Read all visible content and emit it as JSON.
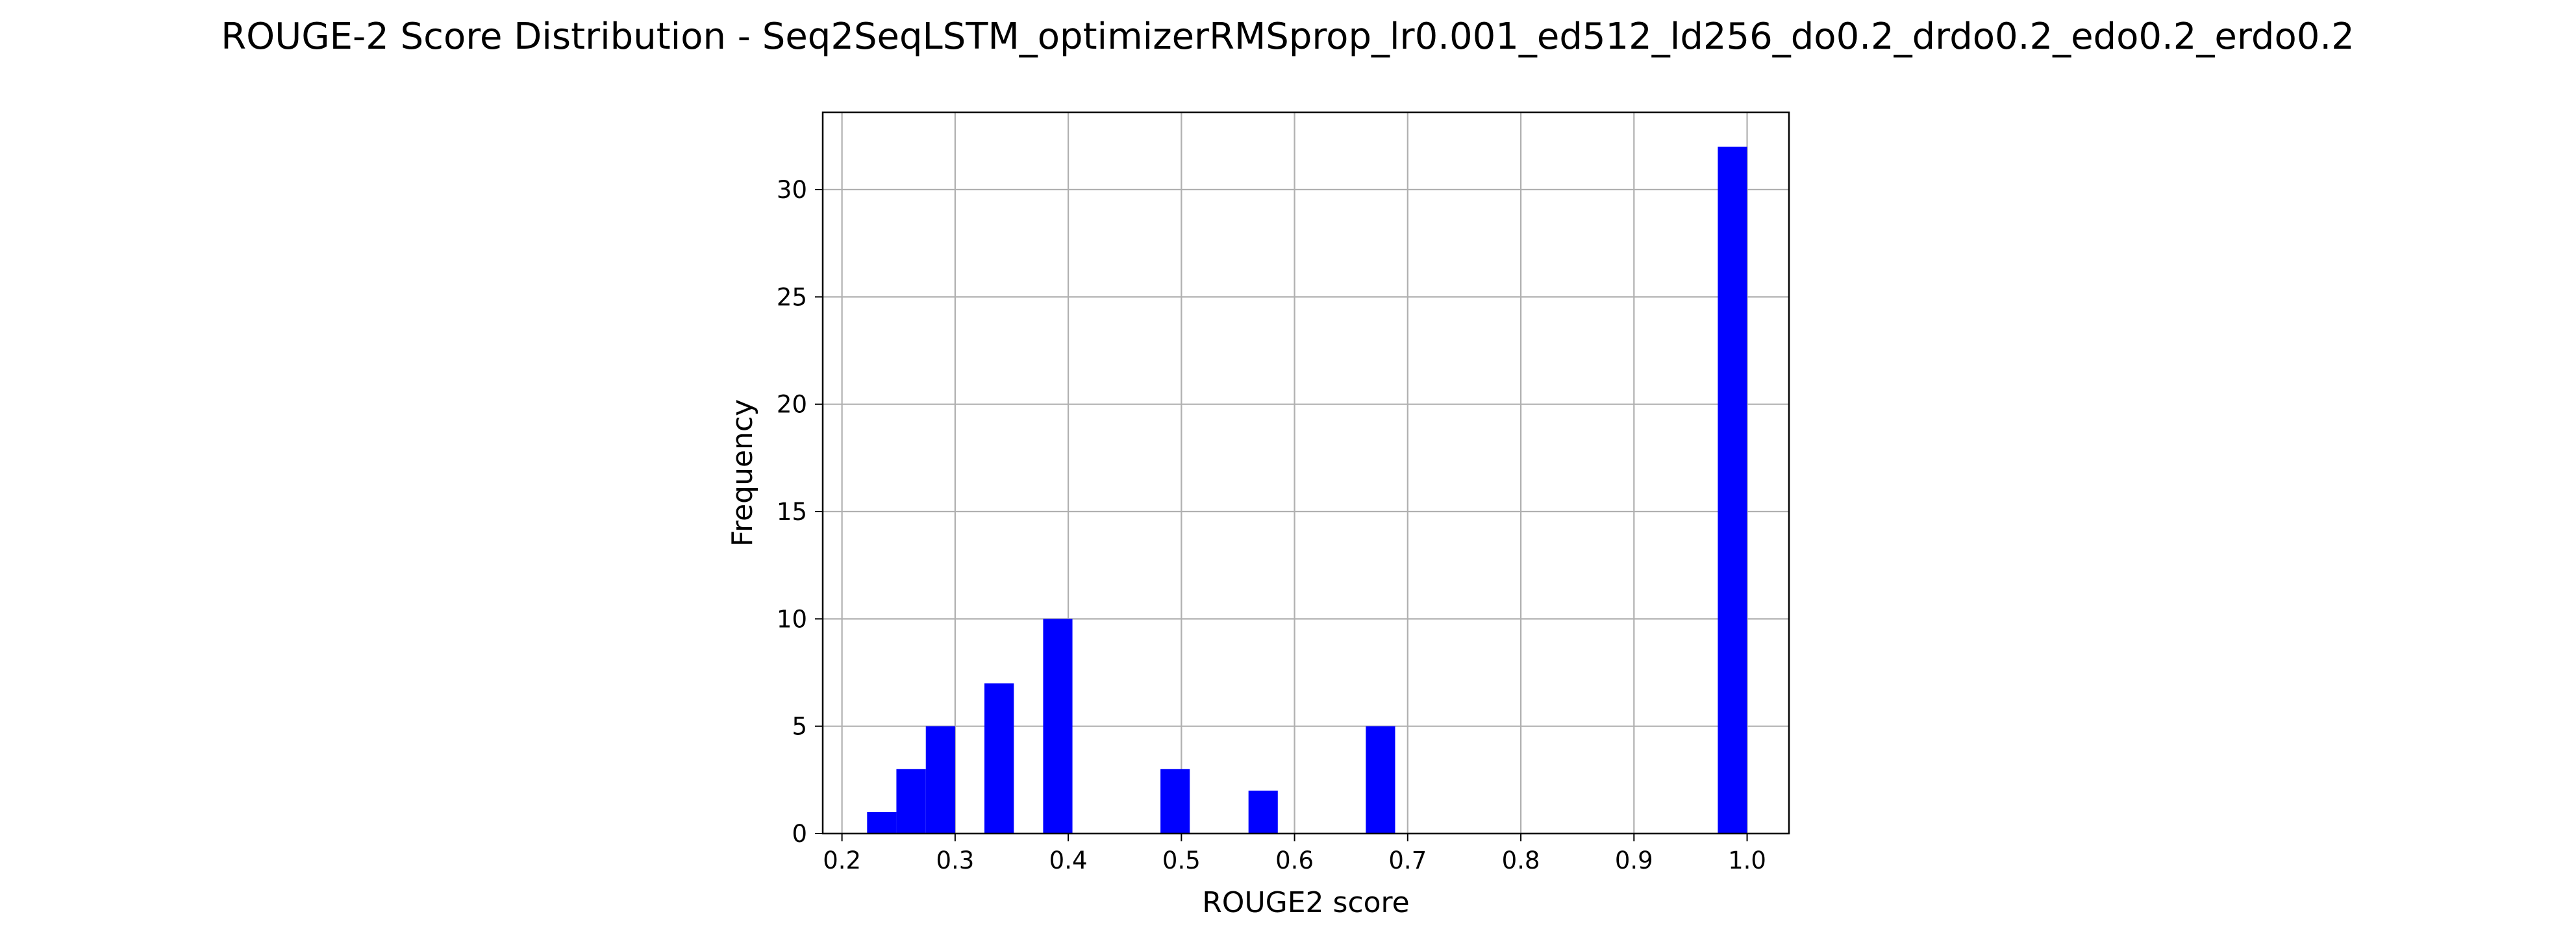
{
  "chart_data": {
    "type": "bar",
    "title": "ROUGE-2 Score Distribution - Seq2SeqLSTM_optimizerRMSprop_lr0.001_ed512_ld256_do0.2_drdo0.2_edo0.2_erdo0.2",
    "xlabel": "ROUGE2 score",
    "ylabel": "Frequency",
    "xlim": [
      0.183,
      1.037
    ],
    "ylim": [
      0,
      33.6
    ],
    "xticks": [
      0.2,
      0.3,
      0.4,
      0.5,
      0.6,
      0.7,
      0.8,
      0.9,
      1.0
    ],
    "xtick_labels": [
      "0.2",
      "0.3",
      "0.4",
      "0.5",
      "0.6",
      "0.7",
      "0.8",
      "0.9",
      "1.0"
    ],
    "yticks": [
      0,
      5,
      10,
      15,
      20,
      25,
      30
    ],
    "ytick_labels": [
      "0",
      "5",
      "10",
      "15",
      "20",
      "25",
      "30"
    ],
    "grid": true,
    "bar_color": "#0000ff",
    "bins": [
      {
        "x0": 0.2222,
        "x1": 0.2481,
        "count": 1
      },
      {
        "x0": 0.2481,
        "x1": 0.2741,
        "count": 3
      },
      {
        "x0": 0.2741,
        "x1": 0.3,
        "count": 5
      },
      {
        "x0": 0.3259,
        "x1": 0.3519,
        "count": 7
      },
      {
        "x0": 0.3778,
        "x1": 0.4037,
        "count": 10
      },
      {
        "x0": 0.4815,
        "x1": 0.5074,
        "count": 3
      },
      {
        "x0": 0.5593,
        "x1": 0.5852,
        "count": 2
      },
      {
        "x0": 0.663,
        "x1": 0.6889,
        "count": 5
      },
      {
        "x0": 0.9741,
        "x1": 1.0,
        "count": 32
      }
    ]
  }
}
